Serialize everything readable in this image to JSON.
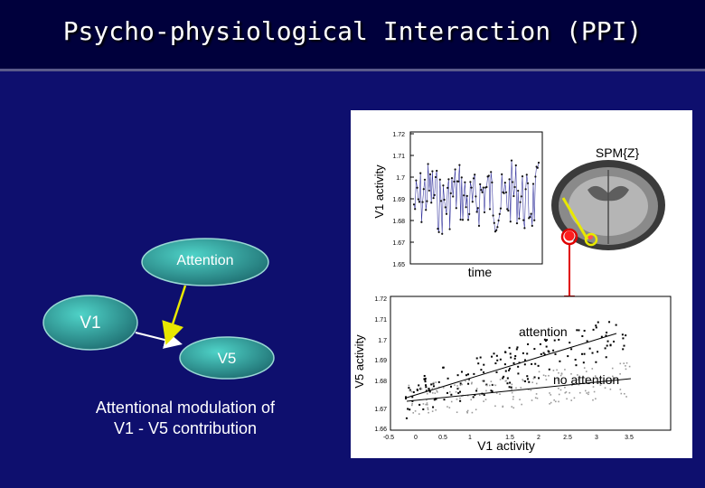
{
  "slide": {
    "title": "Psycho-physiological Interaction (PPI)",
    "caption_line1": "Attentional modulation of",
    "caption_line2": "V1 - V5 contribution"
  },
  "diagram": {
    "attention_label": "Attention",
    "v1_label": "V1",
    "v5_label": "V5",
    "node_color": "#2f9e9a",
    "arrow_color": "#e8e800"
  },
  "timeseries": {
    "ylabel": "V1 activity",
    "xlabel": "time",
    "map_label": "SPM{Z}",
    "yticks": [
      "1.72",
      "1.71",
      "1.7",
      "1.69",
      "1.68",
      "1.67",
      "1.65"
    ]
  },
  "scatter": {
    "ylabel": "V5 activity",
    "xlabel": "V1 activity",
    "label_attention": "attention",
    "label_no_attention": "no attention",
    "yticks": [
      "1.72",
      "1.71",
      "1.7",
      "1.69",
      "1.68",
      "1.67",
      "1.66"
    ],
    "xticks": [
      "-0.5",
      "0",
      "0.5",
      "1",
      "1.5",
      "2",
      "2.5",
      "3",
      "3.5"
    ]
  }
}
